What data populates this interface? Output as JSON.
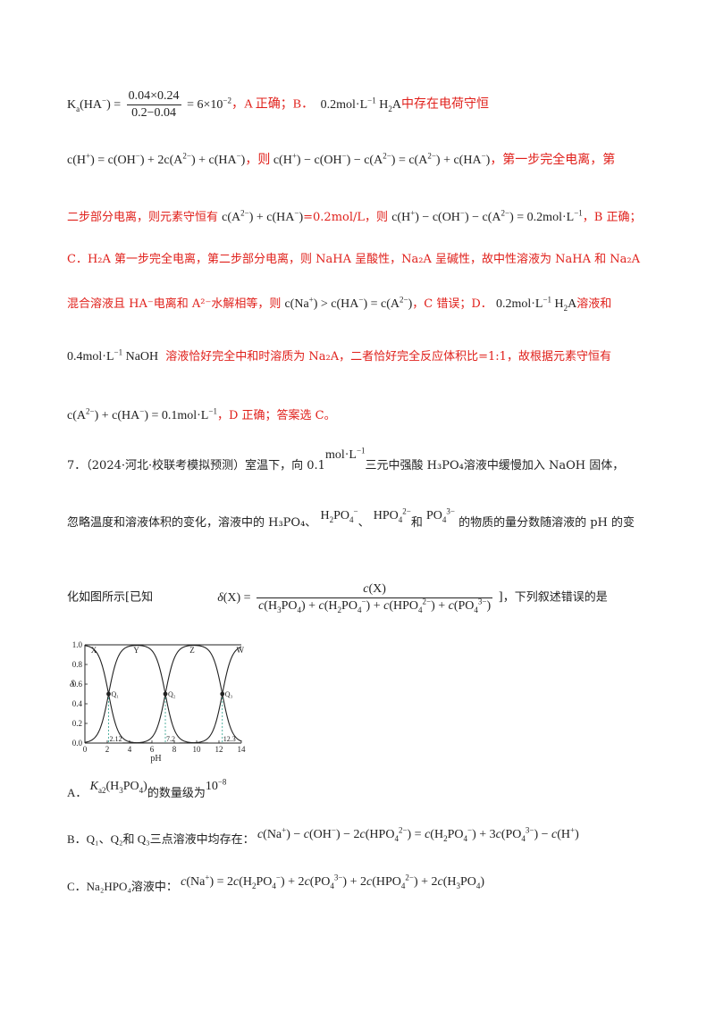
{
  "solution": {
    "l1_a_text": "，A 正确；B．",
    "l1_b_text": "中存在电荷守恒",
    "l1_ka_value": "6×10",
    "l1_ka_exp": "−2",
    "l1_num": "0.04×0.24",
    "l1_den": "0.2−0.04",
    "l2_sep1": "，则",
    "l2_tail": "，第一步完全电离，第",
    "l3_head": "二步部分电离，则元素守恒有",
    "l3_mid": "=0.2mol/L，则",
    "l3_tail": "，B 正确；",
    "l4": "C．H₂A 第一步完全电离，第二步部分电离，则 NaHA 呈酸性，Na₂A 呈碱性，故中性溶液为 NaHA 和 Na₂A",
    "l5_head": "混合溶液且 HA⁻电离和 A²⁻水解相等，则",
    "l5_mid": "，C 错误；D．",
    "l5_tail": "溶液和",
    "l6_tail": "溶液恰好完全中和时溶质为 Na₂A，二者恰好完全反应体积比=1:1，故根据元素守恒有",
    "l7_tail": "，D 正确；答案选 C。"
  },
  "question": {
    "l1_prefix": "7．（2024·河北·校联考模拟预测）室温下，向 0.1",
    "l1_unit": "mol·L",
    "l1_suffix": "三元中强酸 H₃PO₄溶液中缓慢加入 NaOH 固体，",
    "l2_prefix": "忽略温度和溶液体积的变化，溶液中的 H₃PO₄、",
    "l2_sep": "、",
    "l2_and": "和",
    "l2_suffix": "的物质的量分数随溶液的 pH 的变",
    "l3_prefix": "化如图所示[已知",
    "l3_suffix": "]，下列叙述错误的是"
  },
  "chart_data": {
    "type": "line",
    "title": "",
    "xlabel": "pH",
    "ylabel": "δ",
    "xlim": [
      0,
      14
    ],
    "ylim": [
      0,
      1.0
    ],
    "xticks": [
      "0",
      "2",
      "4",
      "6",
      "8",
      "10",
      "12",
      "14"
    ],
    "yticks": [
      "0.0",
      "0.2",
      "0.4",
      "0.6",
      "0.8",
      "1.0"
    ],
    "pKa": [
      2.12,
      7.2,
      12.3
    ],
    "series": [
      {
        "name": "X"
      },
      {
        "name": "Y"
      },
      {
        "name": "Z"
      },
      {
        "name": "W"
      }
    ],
    "points": [
      {
        "label": "Q₁",
        "x": 2.12,
        "y": 0.5,
        "tick": "2.12"
      },
      {
        "label": "Q₂",
        "x": 7.2,
        "y": 0.5,
        "tick": "7.2"
      },
      {
        "label": "Q₃",
        "x": 12.3,
        "y": 0.5,
        "tick": "12.3"
      }
    ]
  },
  "options": {
    "a_label": "A．",
    "a_text": "的数量级为",
    "a_val": "10",
    "a_exp": "−8",
    "b_label": "B．Q₁、Q₂和 Q₃三点溶液中均存在：",
    "c_label": "C．Na₂HPO₄溶液中："
  }
}
